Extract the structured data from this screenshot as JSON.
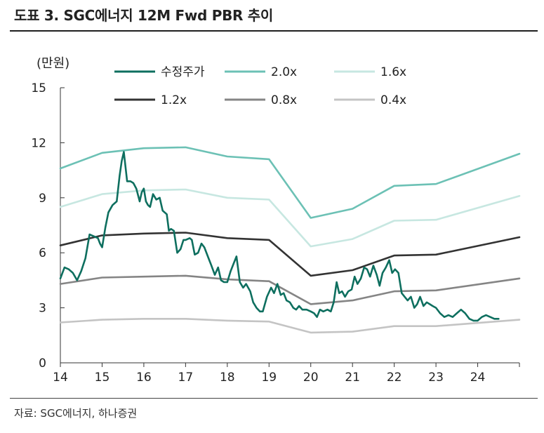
{
  "title": "도표 3. SGC에너지 12M Fwd PBR 추이",
  "source": "자료: SGC에너지, 하나증권",
  "chart_data": {
    "type": "line",
    "unit_label": "(만원)",
    "ylim": [
      0,
      15
    ],
    "yticks": [
      "0",
      "3",
      "6",
      "9",
      "12",
      "15"
    ],
    "xlim": [
      14,
      25
    ],
    "xticks": [
      "14",
      "15",
      "16",
      "17",
      "18",
      "19",
      "20",
      "21",
      "22",
      "23",
      "24"
    ],
    "xticks_values": [
      14,
      15,
      16,
      17,
      18,
      19,
      20,
      21,
      22,
      23,
      24
    ],
    "yticks_values": [
      0,
      3,
      6,
      9,
      12,
      15
    ],
    "series": [
      {
        "name": "수정주가",
        "color": "#0e6f5f",
        "width": 2.6,
        "x": [
          14.0,
          14.1,
          14.2,
          14.3,
          14.4,
          14.5,
          14.6,
          14.7,
          14.8,
          14.9,
          14.95,
          15.0,
          15.08,
          15.15,
          15.25,
          15.3,
          15.35,
          15.42,
          15.47,
          15.52,
          15.6,
          15.68,
          15.75,
          15.82,
          15.9,
          15.95,
          16.0,
          16.05,
          16.1,
          16.15,
          16.22,
          16.3,
          16.38,
          16.45,
          16.55,
          16.6,
          16.65,
          16.72,
          16.8,
          16.88,
          16.95,
          17.0,
          17.1,
          17.15,
          17.22,
          17.3,
          17.38,
          17.45,
          17.55,
          17.62,
          17.7,
          17.78,
          17.85,
          17.92,
          18.0,
          18.08,
          18.15,
          18.22,
          18.3,
          18.38,
          18.45,
          18.55,
          18.62,
          18.7,
          18.78,
          18.85,
          18.95,
          19.05,
          19.12,
          19.2,
          19.28,
          19.35,
          19.42,
          19.5,
          19.58,
          19.65,
          19.72,
          19.8,
          19.9,
          20.0,
          20.08,
          20.15,
          20.22,
          20.3,
          20.4,
          20.48,
          20.55,
          20.62,
          20.68,
          20.75,
          20.82,
          20.9,
          20.98,
          21.05,
          21.12,
          21.2,
          21.28,
          21.35,
          21.42,
          21.5,
          21.58,
          21.65,
          21.72,
          21.8,
          21.88,
          21.95,
          22.02,
          22.1,
          22.18,
          22.25,
          22.32,
          22.4,
          22.48,
          22.55,
          22.62,
          22.7,
          22.78,
          22.85,
          22.92,
          23.0,
          23.1,
          23.2,
          23.3,
          23.4,
          23.5,
          23.6,
          23.7,
          23.8,
          23.9,
          24.0,
          24.1,
          24.2,
          24.3,
          24.4,
          24.5
        ],
        "y": [
          4.6,
          5.2,
          5.1,
          4.9,
          4.5,
          5.0,
          5.7,
          7.0,
          6.9,
          6.8,
          6.5,
          6.3,
          7.4,
          8.2,
          8.6,
          8.7,
          8.8,
          10.2,
          11.0,
          11.5,
          9.9,
          9.9,
          9.8,
          9.5,
          8.8,
          9.3,
          9.5,
          8.8,
          8.6,
          8.5,
          9.2,
          8.9,
          9.0,
          8.3,
          8.1,
          7.2,
          7.3,
          7.2,
          6.0,
          6.2,
          6.7,
          6.7,
          6.8,
          6.7,
          5.9,
          6.0,
          6.5,
          6.3,
          5.7,
          5.3,
          4.8,
          5.2,
          4.5,
          4.4,
          4.4,
          5.0,
          5.4,
          5.8,
          4.4,
          4.1,
          4.3,
          3.9,
          3.3,
          3.0,
          2.8,
          2.8,
          3.6,
          4.1,
          3.8,
          4.3,
          3.7,
          3.8,
          3.4,
          3.3,
          3.0,
          2.9,
          3.1,
          2.9,
          2.9,
          2.8,
          2.7,
          2.5,
          2.9,
          2.8,
          2.9,
          2.8,
          3.3,
          4.4,
          3.8,
          3.9,
          3.6,
          3.9,
          4.0,
          4.7,
          4.3,
          4.6,
          5.2,
          5.1,
          4.7,
          5.3,
          4.8,
          4.2,
          4.9,
          5.2,
          5.6,
          4.9,
          5.1,
          4.9,
          3.8,
          3.6,
          3.4,
          3.6,
          3.0,
          3.2,
          3.6,
          3.1,
          3.3,
          3.2,
          3.1,
          3.0,
          2.7,
          2.5,
          2.6,
          2.5,
          2.7,
          2.9,
          2.7,
          2.4,
          2.3,
          2.3,
          2.5,
          2.6,
          2.5,
          2.4,
          2.4
        ]
      },
      {
        "name": "2.0x",
        "color": "#6cc1b5",
        "width": 2.6,
        "x": [
          14,
          15,
          16,
          17,
          18,
          19,
          20,
          21,
          22,
          23,
          25
        ],
        "y": [
          10.6,
          11.45,
          11.7,
          11.75,
          11.25,
          11.1,
          7.9,
          8.4,
          9.65,
          9.75,
          11.4
        ]
      },
      {
        "name": "1.6x",
        "color": "#c7e7e1",
        "width": 2.6,
        "x": [
          14,
          15,
          16,
          17,
          18,
          19,
          20,
          21,
          22,
          23,
          25
        ],
        "y": [
          8.5,
          9.2,
          9.4,
          9.45,
          9.0,
          8.9,
          6.35,
          6.75,
          7.75,
          7.8,
          9.1
        ]
      },
      {
        "name": "1.2x",
        "color": "#333333",
        "width": 2.6,
        "x": [
          14,
          15,
          16,
          17,
          18,
          19,
          20,
          21,
          22,
          23,
          25
        ],
        "y": [
          6.4,
          6.95,
          7.05,
          7.1,
          6.8,
          6.7,
          4.75,
          5.05,
          5.85,
          5.9,
          6.85
        ]
      },
      {
        "name": "0.8x",
        "color": "#858585",
        "width": 2.6,
        "x": [
          14,
          15,
          16,
          17,
          18,
          19,
          20,
          21,
          22,
          23,
          25
        ],
        "y": [
          4.3,
          4.65,
          4.7,
          4.75,
          4.55,
          4.45,
          3.2,
          3.4,
          3.9,
          3.95,
          4.6
        ]
      },
      {
        "name": "0.4x",
        "color": "#c4c4c4",
        "width": 2.6,
        "x": [
          14,
          15,
          16,
          17,
          18,
          19,
          20,
          21,
          22,
          23,
          25
        ],
        "y": [
          2.2,
          2.35,
          2.4,
          2.4,
          2.3,
          2.25,
          1.65,
          1.7,
          2.0,
          2.0,
          2.35
        ]
      }
    ]
  }
}
